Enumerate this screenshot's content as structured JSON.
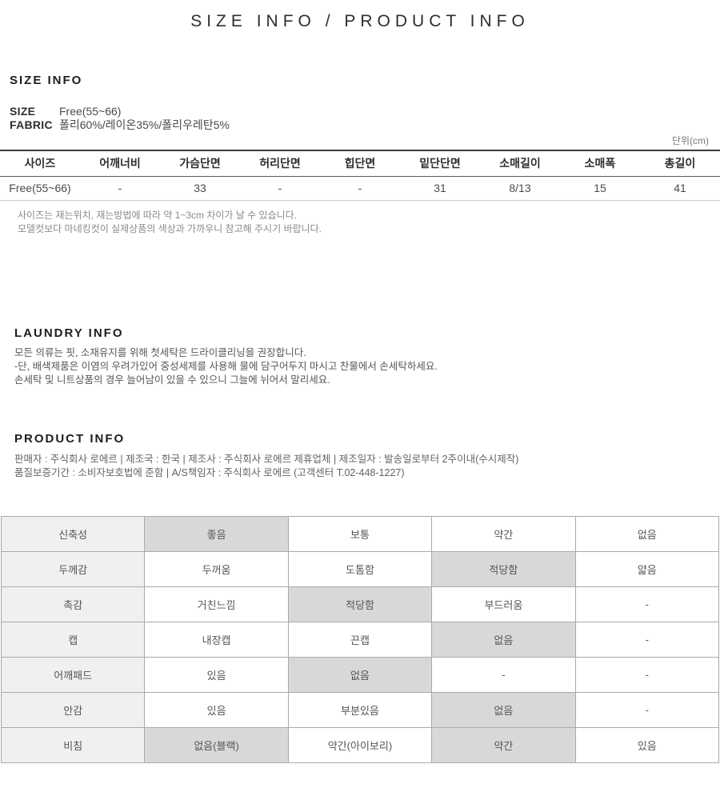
{
  "page_title": "SIZE INFO / PRODUCT INFO",
  "size_info": {
    "heading": "SIZE INFO",
    "attributes": [
      {
        "label": "SIZE",
        "value": "Free(55~66)"
      },
      {
        "label": "FABRIC",
        "value": "폴리60%/레이온35%/폴리우레탄5%"
      }
    ],
    "unit_label": "단위(cm)",
    "table": {
      "headers": [
        "사이즈",
        "어깨너비",
        "가슴단면",
        "허리단면",
        "힙단면",
        "밑단단면",
        "소매길이",
        "소매폭",
        "총길이"
      ],
      "rows": [
        [
          "Free(55~66)",
          "-",
          "33",
          "-",
          "-",
          "31",
          "8/13",
          "15",
          "41"
        ]
      ]
    },
    "notes": [
      "사이즈는 재는위치, 재는방법에 따라 약 1~3cm 차이가 날 수 있습니다.",
      "모델컷보다 마네킹컷이 실제상품의 색상과 가까우니 참고해 주시기 바랍니다."
    ]
  },
  "laundry_info": {
    "heading": "LAUNDRY INFO",
    "lines": [
      "모든 의류는 핏, 소재유지를 위해 첫세탁은 드라이클리닝을 권장합니다.",
      "-단, 배색제품은 이염의 우려가있어 중성세제를 사용해 물에 담구어두지 마시고 찬물에서 손세탁하세요.",
      "손세탁 및 니트상품의 경우 늘어남이 있을 수 있으니 그늘에 뉘어서 말리세요."
    ]
  },
  "product_info": {
    "heading": "PRODUCT INFO",
    "lines": [
      "판매자 : 주식회사 로에르 | 제조국 : 한국 | 제조사 : 주식회사 로에르 제휴업체 | 제조일자 : 발송일로부터 2주이내(수시제작)",
      "품질보증기간 : 소비자보호법에 준함 | A/S책임자 : 주식회사 로에르 (고객센터 T.02-448-1227)"
    ]
  },
  "property_table": {
    "rows": [
      {
        "label": "신축성",
        "options": [
          "좋음",
          "보통",
          "약간",
          "없음"
        ],
        "selected": [
          0
        ]
      },
      {
        "label": "두께감",
        "options": [
          "두꺼움",
          "도톰함",
          "적당함",
          "얇음"
        ],
        "selected": [
          2
        ]
      },
      {
        "label": "촉감",
        "options": [
          "거친느낌",
          "적당함",
          "부드러움",
          "-"
        ],
        "selected": [
          1
        ]
      },
      {
        "label": "캡",
        "options": [
          "내장캡",
          "끈캡",
          "없음",
          "-"
        ],
        "selected": [
          2
        ]
      },
      {
        "label": "어깨패드",
        "options": [
          "있음",
          "없음",
          "-",
          "-"
        ],
        "selected": [
          1
        ]
      },
      {
        "label": "안감",
        "options": [
          "있음",
          "부분있음",
          "없음",
          "-"
        ],
        "selected": [
          2
        ]
      },
      {
        "label": "비침",
        "options": [
          "없음(블랙)",
          "약간(아이보리)",
          "약간",
          "있음"
        ],
        "selected": [
          0,
          2
        ]
      }
    ]
  },
  "colors": {
    "highlight_bg": "#d8d8d8",
    "label_column_bg": "#f0f0f0",
    "table_border": "#aaaaaa"
  }
}
